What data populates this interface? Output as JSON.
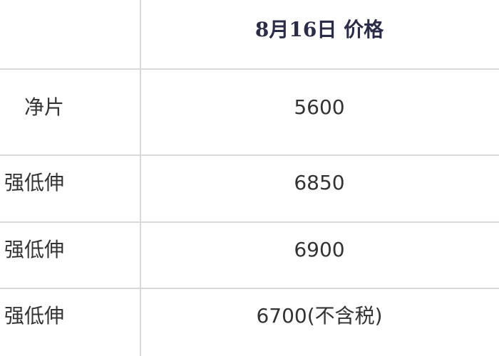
{
  "table": {
    "header": {
      "price": "8月16日 价格"
    },
    "rows": [
      [
        "净片",
        "5600"
      ],
      [
        "强低伸",
        "6850"
      ],
      [
        "强低伸",
        "6900"
      ],
      [
        "强低伸",
        "6700(不含税)"
      ]
    ]
  }
}
